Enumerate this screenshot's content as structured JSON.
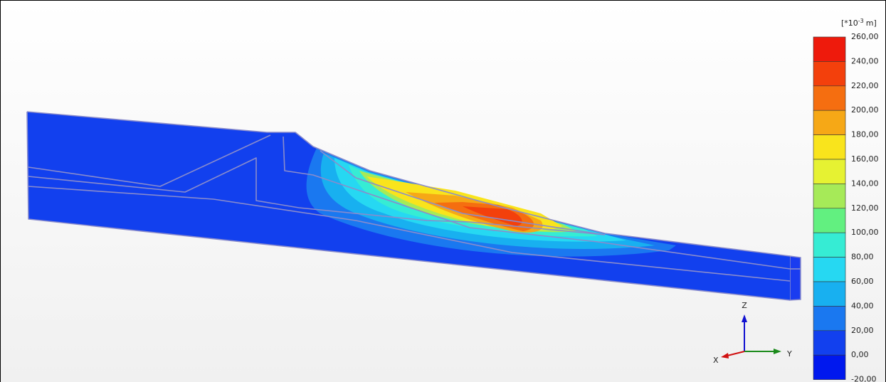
{
  "legend": {
    "unit": {
      "base": "[*10",
      "exponent": "-3",
      "suffix": "m]"
    },
    "labels": [
      "260,00",
      "240,00",
      "220,00",
      "200,00",
      "180,00",
      "160,00",
      "140,00",
      "120,00",
      "100,00",
      "80,00",
      "60,00",
      "40,00",
      "20,00",
      "0,00",
      "-20,00"
    ],
    "colors": [
      "#ee1a0c",
      "#f3400c",
      "#f56e10",
      "#f6a816",
      "#f9e41c",
      "#e6f232",
      "#a6ea58",
      "#62f080",
      "#36ecd4",
      "#26d8f2",
      "#18b0f0",
      "#1a78f0",
      "#1240ee",
      "#0018ee"
    ]
  },
  "axes": {
    "z": "Z",
    "x": "X",
    "y": "Y"
  }
}
